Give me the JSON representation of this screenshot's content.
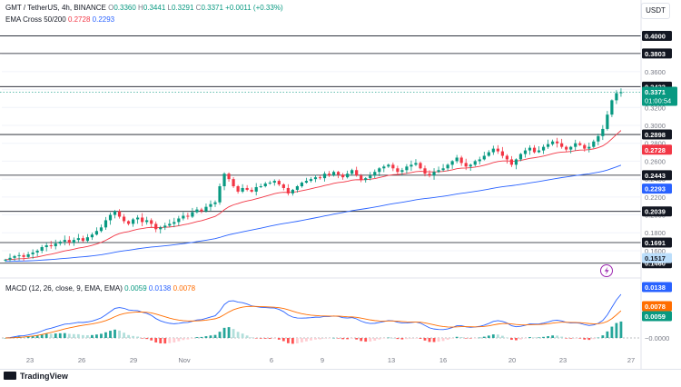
{
  "header": {
    "symbol": "GMT / TetherUS, 4h, BINANCE",
    "ohlc": [
      {
        "k": "O",
        "v": "0.3360"
      },
      {
        "k": "H",
        "v": "0.3441"
      },
      {
        "k": "L",
        "v": "0.3291"
      },
      {
        "k": "C",
        "v": "0.3371"
      }
    ],
    "change": "+0.0011 (+0.33%)",
    "ema_label": "EMA Cross 50/200",
    "ema_fast_value": "0.2728",
    "ema_slow_value": "0.2293",
    "macd_label": "MACD (12, 26, close, 9, EMA, EMA)",
    "macd_hist_value": "0.0059",
    "macd_line_value": "0.0138",
    "macd_signal_value": "0.0078",
    "currency_button": "USDT",
    "logo_text": "TradingView"
  },
  "colors": {
    "up": "#089981",
    "down": "#f23645",
    "ema_fast": "#f23645",
    "ema_slow": "#2962ff",
    "macd_line": "#2962ff",
    "signal_line": "#ff6d00",
    "level_line": "#131722",
    "level_tag": "#131722",
    "price_tag": "#089981"
  },
  "chart_data": {
    "type": "candlestick",
    "y_axis": {
      "ticks": [
        0.16,
        0.18,
        0.2,
        0.22,
        0.24,
        0.26,
        0.28,
        0.3,
        0.32,
        0.34,
        0.36,
        0.38
      ],
      "tick_labels": [
        "0.1600",
        "0.1800",
        "0.2000",
        "0.2200",
        "0.2400",
        "0.2600",
        "0.2800",
        "0.3000",
        "0.3200",
        "0.3400",
        "0.3600",
        "0.3800"
      ],
      "range": [
        0.1427,
        0.4096
      ]
    },
    "x_axis": {
      "labels": [
        "23",
        "26",
        "29",
        "Nov",
        "6",
        "9",
        "13",
        "16",
        "20",
        "23",
        "27"
      ]
    },
    "horizontal_levels": [
      {
        "value": 0.4,
        "label": "0.4000"
      },
      {
        "value": 0.3803,
        "label": "0.3803"
      },
      {
        "value": 0.3433,
        "label": "0.3433"
      },
      {
        "value": 0.2898,
        "label": "0.2898"
      },
      {
        "value": 0.2443,
        "label": "0.2443"
      },
      {
        "value": 0.2039,
        "label": "0.2039"
      },
      {
        "value": 0.1691,
        "label": "0.1691"
      },
      {
        "value": 0.146,
        "label": "0.1460"
      }
    ],
    "current_price": {
      "value": 0.3371,
      "label": "0.3371",
      "countdown": "01:00:54"
    },
    "ema_fast_last": {
      "value": 0.2728,
      "label": "0.2728"
    },
    "ema_slow_last": {
      "value": 0.2293,
      "label": "0.2293"
    },
    "close_path": [
      0.15,
      0.152,
      0.154,
      0.155,
      0.153,
      0.156,
      0.158,
      0.16,
      0.164,
      0.166,
      0.165,
      0.168,
      0.17,
      0.172,
      0.169,
      0.172,
      0.174,
      0.171,
      0.175,
      0.178,
      0.182,
      0.186,
      0.194,
      0.2,
      0.204,
      0.198,
      0.193,
      0.19,
      0.195,
      0.197,
      0.192,
      0.194,
      0.19,
      0.184,
      0.186,
      0.188,
      0.19,
      0.192,
      0.196,
      0.199,
      0.198,
      0.203,
      0.206,
      0.204,
      0.209,
      0.212,
      0.214,
      0.232,
      0.246,
      0.24,
      0.232,
      0.226,
      0.23,
      0.228,
      0.226,
      0.231,
      0.232,
      0.235,
      0.236,
      0.238,
      0.234,
      0.23,
      0.224,
      0.228,
      0.232,
      0.236,
      0.238,
      0.24,
      0.242,
      0.241,
      0.246,
      0.244,
      0.248,
      0.245,
      0.242,
      0.246,
      0.25,
      0.244,
      0.239,
      0.241,
      0.244,
      0.248,
      0.252,
      0.254,
      0.256,
      0.252,
      0.248,
      0.25,
      0.254,
      0.256,
      0.258,
      0.252,
      0.246,
      0.244,
      0.248,
      0.25,
      0.252,
      0.256,
      0.26,
      0.264,
      0.258,
      0.254,
      0.256,
      0.26,
      0.262,
      0.266,
      0.27,
      0.274,
      0.271,
      0.266,
      0.262,
      0.256,
      0.262,
      0.268,
      0.272,
      0.275,
      0.27,
      0.272,
      0.276,
      0.279,
      0.282,
      0.28,
      0.276,
      0.273,
      0.276,
      0.28,
      0.278,
      0.274,
      0.276,
      0.282,
      0.288,
      0.296,
      0.312,
      0.328,
      0.336,
      0.3371
    ],
    "macd": {
      "scale_ticks": [
        "0.0138",
        "0.0078",
        "0.0059",
        "−0.0000"
      ],
      "last": {
        "macd": 0.0138,
        "signal": 0.0078,
        "hist": 0.0059
      }
    }
  }
}
